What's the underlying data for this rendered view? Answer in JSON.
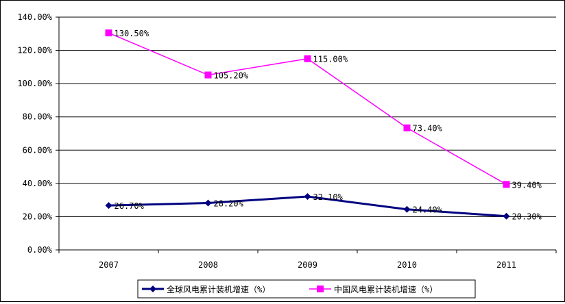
{
  "chart_data": {
    "type": "line",
    "categories": [
      "2007",
      "2008",
      "2009",
      "2010",
      "2011"
    ],
    "ylim": [
      0,
      140
    ],
    "ytick_labels": [
      "0.00%",
      "20.00%",
      "40.00%",
      "60.00%",
      "80.00%",
      "100.00%",
      "120.00%",
      "140.00%"
    ],
    "grid": "horizontal",
    "legend_position": "bottom",
    "series": [
      {
        "name": "全球风电累计装机增速（%）",
        "values": [
          26.7,
          28.2,
          32.1,
          24.4,
          20.3
        ],
        "labels": [
          "26.70%",
          "28.20%",
          "32.10%",
          "24.40%",
          "20.30%"
        ],
        "color": "#000080",
        "marker": "diamond"
      },
      {
        "name": "中国风电累计装机增速（%）",
        "values": [
          130.5,
          105.2,
          115.0,
          73.4,
          39.4
        ],
        "labels": [
          "130.50%",
          "105.20%",
          "115.00%",
          "73.40%",
          "39.40%"
        ],
        "color": "#FF00FF",
        "marker": "square"
      }
    ]
  }
}
